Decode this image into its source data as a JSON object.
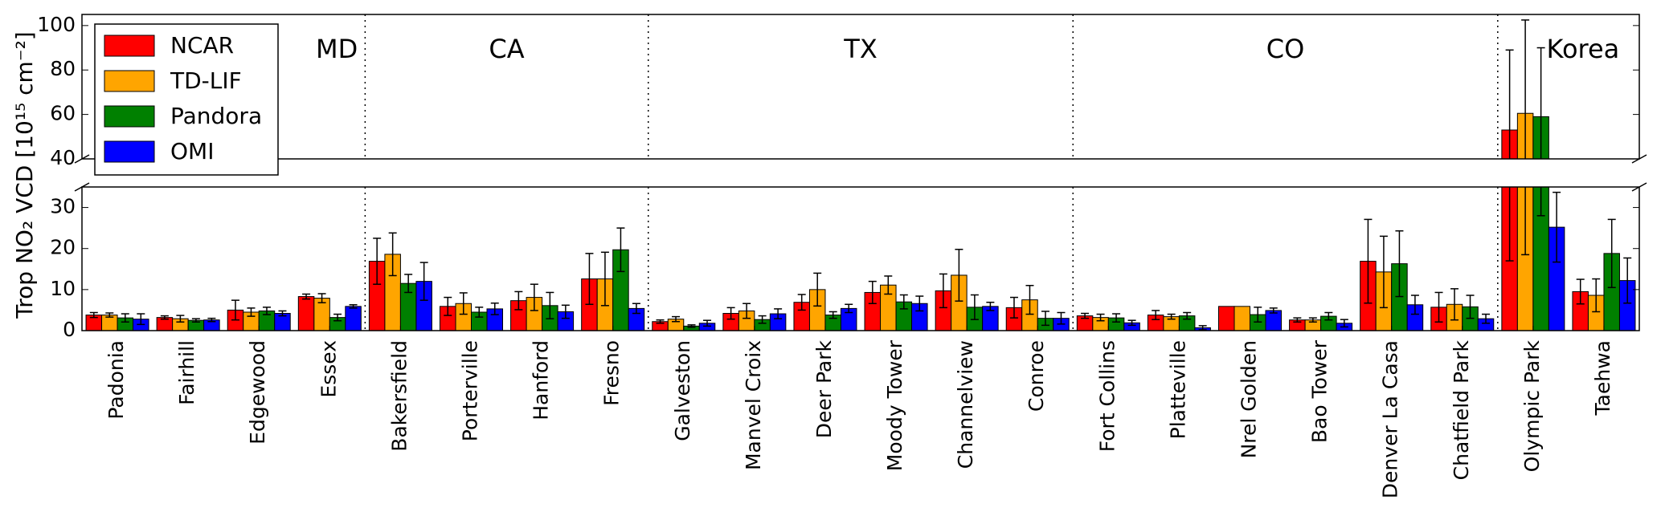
{
  "chart_data": {
    "type": "bar",
    "ylabel": "Trop NO₂ VCD [10¹⁵ cm⁻²]",
    "xlabel": "",
    "y_axis_break": {
      "lower": [
        0,
        35
      ],
      "upper": [
        40,
        105
      ]
    },
    "lower_ticks": [
      0,
      10,
      20,
      30
    ],
    "upper_ticks": [
      40,
      60,
      80,
      100
    ],
    "legend_placement": "top-left",
    "series": [
      {
        "name": "NCAR",
        "color": "#ff0000"
      },
      {
        "name": "TD-LIF",
        "color": "#ffa500"
      },
      {
        "name": "Pandora",
        "color": "#008000"
      },
      {
        "name": "OMI",
        "color": "#0000ff"
      }
    ],
    "regions": [
      {
        "label": "MD",
        "start": 0,
        "end": 4
      },
      {
        "label": "CA",
        "start": 4,
        "end": 8
      },
      {
        "label": "TX",
        "start": 8,
        "end": 14
      },
      {
        "label": "CO",
        "start": 14,
        "end": 20
      },
      {
        "label": "Korea",
        "start": 20,
        "end": 22
      }
    ],
    "categories": [
      "Padonia",
      "Fairhill",
      "Edgewood",
      "Essex",
      "Bakersfield",
      "Porterville",
      "Hanford",
      "Fresno",
      "Galveston",
      "Manvel Croix",
      "Deer Park",
      "Moody Tower",
      "Channelview",
      "Conroe",
      "Fort Collins",
      "Platteville",
      "Nrel Golden",
      "Bao Tower",
      "Denver La Casa",
      "Chatfield Park",
      "Olympic Park",
      "Taehwa"
    ],
    "values": [
      [
        [
          3.8,
          0.6
        ],
        [
          3.8,
          0.5
        ],
        [
          3.1,
          1.0
        ],
        [
          2.8,
          1.3
        ]
      ],
      [
        [
          3.2,
          0.4
        ],
        [
          2.9,
          0.8
        ],
        [
          2.5,
          0.4
        ],
        [
          2.6,
          0.4
        ]
      ],
      [
        [
          5.0,
          2.4
        ],
        [
          4.5,
          1.0
        ],
        [
          4.8,
          0.9
        ],
        [
          4.2,
          0.6
        ]
      ],
      [
        [
          8.3,
          0.6
        ],
        [
          7.9,
          1.1
        ],
        [
          3.2,
          0.8
        ],
        [
          5.9,
          0.4
        ]
      ],
      [
        [
          16.9,
          5.6
        ],
        [
          18.6,
          5.2
        ],
        [
          11.5,
          2.2
        ],
        [
          12.0,
          4.6
        ]
      ],
      [
        [
          5.9,
          2.2
        ],
        [
          6.6,
          2.6
        ],
        [
          4.5,
          1.2
        ],
        [
          5.3,
          1.4
        ]
      ],
      [
        [
          7.3,
          2.2
        ],
        [
          8.1,
          3.2
        ],
        [
          6.1,
          3.2
        ],
        [
          4.6,
          1.6
        ]
      ],
      [
        [
          12.6,
          6.2
        ],
        [
          12.6,
          6.5
        ],
        [
          19.7,
          5.3
        ],
        [
          5.4,
          1.2
        ]
      ],
      [
        [
          2.2,
          0.4
        ],
        [
          2.8,
          0.6
        ],
        [
          1.1,
          0.3
        ],
        [
          1.8,
          0.7
        ]
      ],
      [
        [
          4.2,
          1.4
        ],
        [
          4.8,
          1.8
        ],
        [
          2.7,
          0.9
        ],
        [
          4.1,
          1.2
        ]
      ],
      [
        [
          6.9,
          1.9
        ],
        [
          10.0,
          4.0
        ],
        [
          3.8,
          0.8
        ],
        [
          5.4,
          1.0
        ]
      ],
      [
        [
          9.3,
          2.7
        ],
        [
          11.1,
          2.2
        ],
        [
          7.0,
          1.7
        ],
        [
          6.6,
          1.8
        ]
      ],
      [
        [
          9.7,
          4.1
        ],
        [
          13.5,
          6.3
        ],
        [
          5.7,
          3.0
        ],
        [
          5.9,
          1.0
        ]
      ],
      [
        [
          5.6,
          2.5
        ],
        [
          7.5,
          3.5
        ],
        [
          3.0,
          1.7
        ],
        [
          3.0,
          1.4
        ]
      ],
      [
        [
          3.6,
          0.6
        ],
        [
          3.2,
          0.8
        ],
        [
          3.1,
          1.0
        ],
        [
          1.9,
          0.6
        ]
      ],
      [
        [
          3.8,
          1.1
        ],
        [
          3.4,
          0.6
        ],
        [
          3.6,
          0.8
        ],
        [
          0.7,
          0.5
        ]
      ],
      [
        [
          5.9,
          0.0
        ],
        [
          5.9,
          0.0
        ],
        [
          3.9,
          1.8
        ],
        [
          4.9,
          0.6
        ]
      ],
      [
        [
          2.6,
          0.5
        ],
        [
          2.6,
          0.5
        ],
        [
          3.5,
          0.9
        ],
        [
          1.8,
          0.9
        ]
      ],
      [
        [
          16.9,
          10.2
        ],
        [
          14.3,
          8.7
        ],
        [
          16.3,
          8.0
        ],
        [
          6.3,
          2.3
        ]
      ],
      [
        [
          5.7,
          3.6
        ],
        [
          6.4,
          3.8
        ],
        [
          5.8,
          2.8
        ],
        [
          2.9,
          1.1
        ]
      ],
      [
        [
          53.0,
          36.0
        ],
        [
          60.5,
          42.0
        ],
        [
          59.0,
          31.0
        ],
        [
          25.2,
          8.5
        ]
      ],
      [
        [
          9.5,
          3.0
        ],
        [
          8.6,
          4.0
        ],
        [
          18.8,
          8.3
        ],
        [
          12.2,
          5.5
        ]
      ]
    ]
  }
}
